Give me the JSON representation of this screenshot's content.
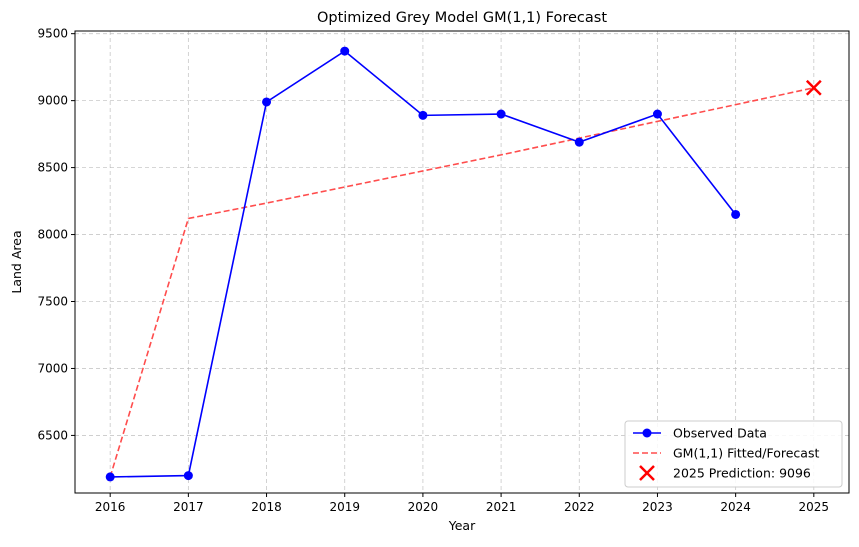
{
  "chart_data": {
    "type": "line",
    "title": "Optimized Grey Model GM(1,1) Forecast",
    "xlabel": "Year",
    "ylabel": "Land Area",
    "x": [
      2016,
      2017,
      2018,
      2019,
      2020,
      2021,
      2022,
      2023,
      2024,
      2025
    ],
    "xlim": [
      2015.55,
      2025.45
    ],
    "ylim": [
      6070,
      9520
    ],
    "yticks": [
      6500,
      7000,
      7500,
      8000,
      8500,
      9000,
      9500
    ],
    "grid": true,
    "legend_position": "lower-right",
    "series": [
      {
        "name": "Observed Data",
        "style": "solid line with circle markers",
        "color": "#0000ff",
        "x": [
          2016,
          2017,
          2018,
          2019,
          2020,
          2021,
          2022,
          2023,
          2024
        ],
        "values": [
          6190,
          6200,
          8990,
          9370,
          8890,
          8900,
          8690,
          8900,
          8150
        ]
      },
      {
        "name": "GM(1,1) Fitted/Forecast",
        "style": "dashed line",
        "color": "#ff4d4d",
        "x": [
          2016,
          2017,
          2018,
          2019,
          2020,
          2021,
          2022,
          2023,
          2024,
          2025
        ],
        "values": [
          6190,
          8120,
          8235,
          8355,
          8475,
          8595,
          8720,
          8845,
          8970,
          9096
        ]
      },
      {
        "name": "2025 Prediction: 9096",
        "style": "x marker",
        "color": "#ff0000",
        "x": [
          2025
        ],
        "values": [
          9096
        ]
      }
    ]
  }
}
